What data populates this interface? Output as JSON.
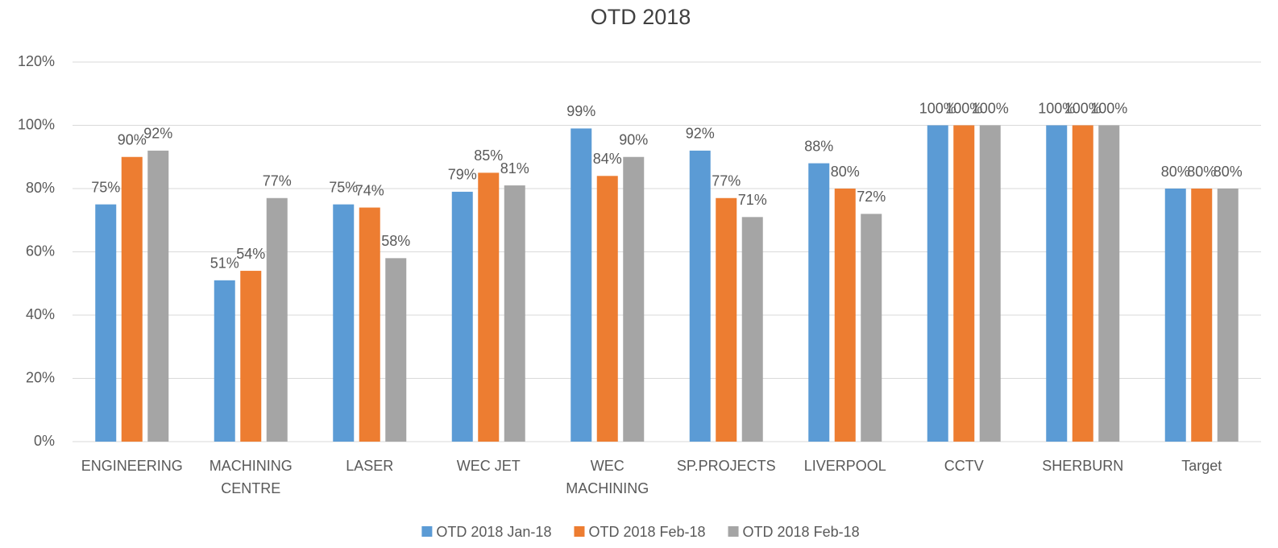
{
  "chart_data": {
    "type": "bar",
    "title": "OTD 2018",
    "categories": [
      "ENGINEERING",
      "MACHINING CENTRE",
      "LASER",
      "WEC JET",
      "WEC MACHINING",
      "SP.PROJECTS",
      "LIVERPOOL",
      "CCTV",
      "SHERBURN",
      "Target"
    ],
    "series": [
      {
        "name": "OTD 2018 Jan-18",
        "color": "#5b9bd5",
        "values": [
          75,
          51,
          75,
          79,
          99,
          92,
          88,
          100,
          100,
          80
        ],
        "value_labels": [
          "75%",
          "51%",
          "75%",
          "79%",
          "99%",
          "92%",
          "88%",
          "100%",
          "100%",
          "80%"
        ]
      },
      {
        "name": "OTD 2018 Feb-18",
        "color": "#ed7d31",
        "values": [
          90,
          54,
          74,
          85,
          84,
          77,
          80,
          100,
          100,
          80
        ],
        "value_labels": [
          "90%",
          "54%",
          "74%",
          "85%",
          "84%",
          "77%",
          "80%",
          "100%",
          "100%",
          "80%"
        ]
      },
      {
        "name": "OTD 2018 Feb-18",
        "color": "#a5a5a5",
        "values": [
          92,
          77,
          58,
          81,
          90,
          71,
          72,
          100,
          100,
          80
        ],
        "value_labels": [
          "92%",
          "77%",
          "58%",
          "81%",
          "90%",
          "71%",
          "72%",
          "100%",
          "100%",
          "80%"
        ]
      }
    ],
    "ylim": [
      0,
      120
    ],
    "yticks": [
      {
        "value": 0,
        "label": "0%"
      },
      {
        "value": 20,
        "label": "20%"
      },
      {
        "value": 40,
        "label": "40%"
      },
      {
        "value": 60,
        "label": "60%"
      },
      {
        "value": 80,
        "label": "80%"
      },
      {
        "value": 100,
        "label": "100%"
      },
      {
        "value": 120,
        "label": "120%"
      }
    ],
    "grid": true,
    "legend": "bottom"
  }
}
